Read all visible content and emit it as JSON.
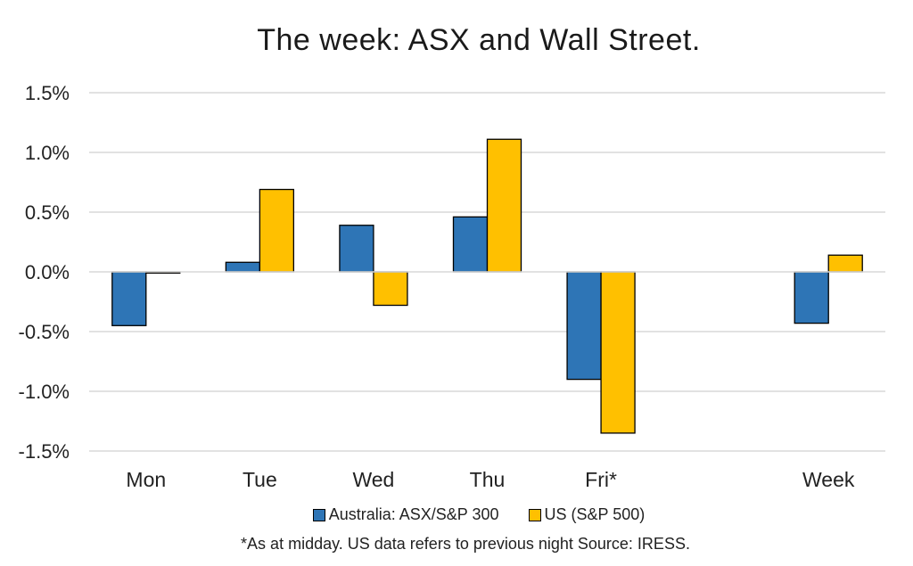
{
  "chart_data": {
    "type": "bar",
    "title": "The week:  ASX and Wall Street.",
    "categories": [
      "Mon",
      "Tue",
      "Wed",
      "Thu",
      "Fri*",
      "",
      "Week"
    ],
    "series": [
      {
        "name": "Australia: ASX/S&P 300",
        "color": "#2e75b6",
        "values": [
          -0.45,
          0.08,
          0.39,
          0.46,
          -0.9,
          null,
          -0.43
        ]
      },
      {
        "name": "US (S&P 500)",
        "color": "#ffc000",
        "values": [
          -0.01,
          0.69,
          -0.28,
          1.11,
          -1.35,
          null,
          0.14
        ]
      }
    ],
    "ylim": [
      -1.5,
      1.5
    ],
    "yticks": [
      "1.5%",
      "1.0%",
      "0.5%",
      "0.0%",
      "-0.5%",
      "-1.0%",
      "-1.5%"
    ],
    "ytick_values": [
      1.5,
      1.0,
      0.5,
      0.0,
      -0.5,
      -1.0,
      -1.5
    ],
    "grid": true,
    "legend_position": "bottom"
  },
  "footnote": "*As at midday. US data refers to previous night  Source:  IRESS."
}
